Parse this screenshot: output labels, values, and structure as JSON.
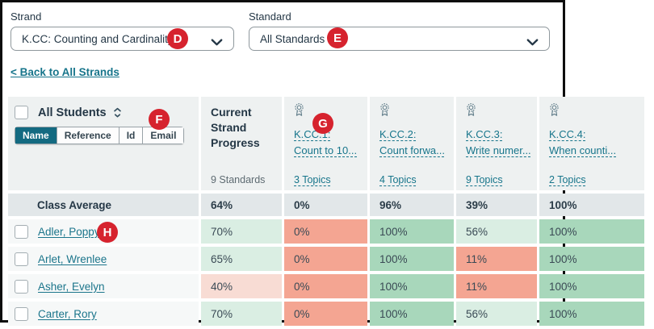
{
  "filters": {
    "strand": {
      "label": "Strand",
      "value": "K.CC: Counting and Cardinality"
    },
    "standard": {
      "label": "Standard",
      "value": "All Standards"
    }
  },
  "back_link": "< Back to All Strands",
  "annotations": [
    "D",
    "E",
    "F",
    "G",
    "H"
  ],
  "table": {
    "students_header": {
      "label": "All Students",
      "tabs": [
        {
          "label": "Name",
          "active": true
        },
        {
          "label": "Reference",
          "active": false
        },
        {
          "label": "Id",
          "active": false
        },
        {
          "label": "Email",
          "active": false
        }
      ]
    },
    "progress_header": {
      "title": "Current Strand Progress",
      "subtitle": "9 Standards"
    },
    "standard_headers": [
      {
        "code": "K.CC.1:",
        "title": "Count to 10...",
        "topics": "3 Topics"
      },
      {
        "code": "K.CC.2:",
        "title": "Count forwa...",
        "topics": "4 Topics"
      },
      {
        "code": "K.CC.3:",
        "title": "Write numer...",
        "topics": "9 Topics"
      },
      {
        "code": "K.CC.4:",
        "title": "When counti...",
        "topics": "2 Topics"
      }
    ],
    "average_row": {
      "label": "Class Average",
      "values": [
        "64%",
        "0%",
        "96%",
        "39%",
        "100%"
      ]
    },
    "student_rows": [
      {
        "name": "Adler, Poppy",
        "values": [
          {
            "text": "70%",
            "tone": "light-green"
          },
          {
            "text": "0%",
            "tone": "red"
          },
          {
            "text": "100%",
            "tone": "green"
          },
          {
            "text": "56%",
            "tone": "light-green"
          },
          {
            "text": "100%",
            "tone": "green"
          }
        ]
      },
      {
        "name": "Arlet, Wrenlee",
        "values": [
          {
            "text": "65%",
            "tone": "light-green"
          },
          {
            "text": "0%",
            "tone": "red"
          },
          {
            "text": "100%",
            "tone": "green"
          },
          {
            "text": "11%",
            "tone": "red"
          },
          {
            "text": "100%",
            "tone": "green"
          }
        ]
      },
      {
        "name": "Asher, Evelyn",
        "values": [
          {
            "text": "40%",
            "tone": "light-pink"
          },
          {
            "text": "0%",
            "tone": "red"
          },
          {
            "text": "100%",
            "tone": "green"
          },
          {
            "text": "11%",
            "tone": "red"
          },
          {
            "text": "100%",
            "tone": "green"
          }
        ]
      },
      {
        "name": "Carter, Rory",
        "values": [
          {
            "text": "70%",
            "tone": "light-green"
          },
          {
            "text": "0%",
            "tone": "red"
          },
          {
            "text": "100%",
            "tone": "green"
          },
          {
            "text": "56%",
            "tone": "light-green"
          },
          {
            "text": "100%",
            "tone": "green"
          }
        ]
      }
    ]
  },
  "colors": {
    "accent_teal": "#17758b",
    "active_tab_teal": "#136a81",
    "annotation_red": "#d6232e",
    "cell_green": "#a8d7bb",
    "cell_light_green": "#daeee3",
    "cell_red": "#f4a592",
    "cell_light_pink": "#f8dcd4",
    "average_gray": "#e2e7e9",
    "header_gray": "#eef1f1"
  }
}
